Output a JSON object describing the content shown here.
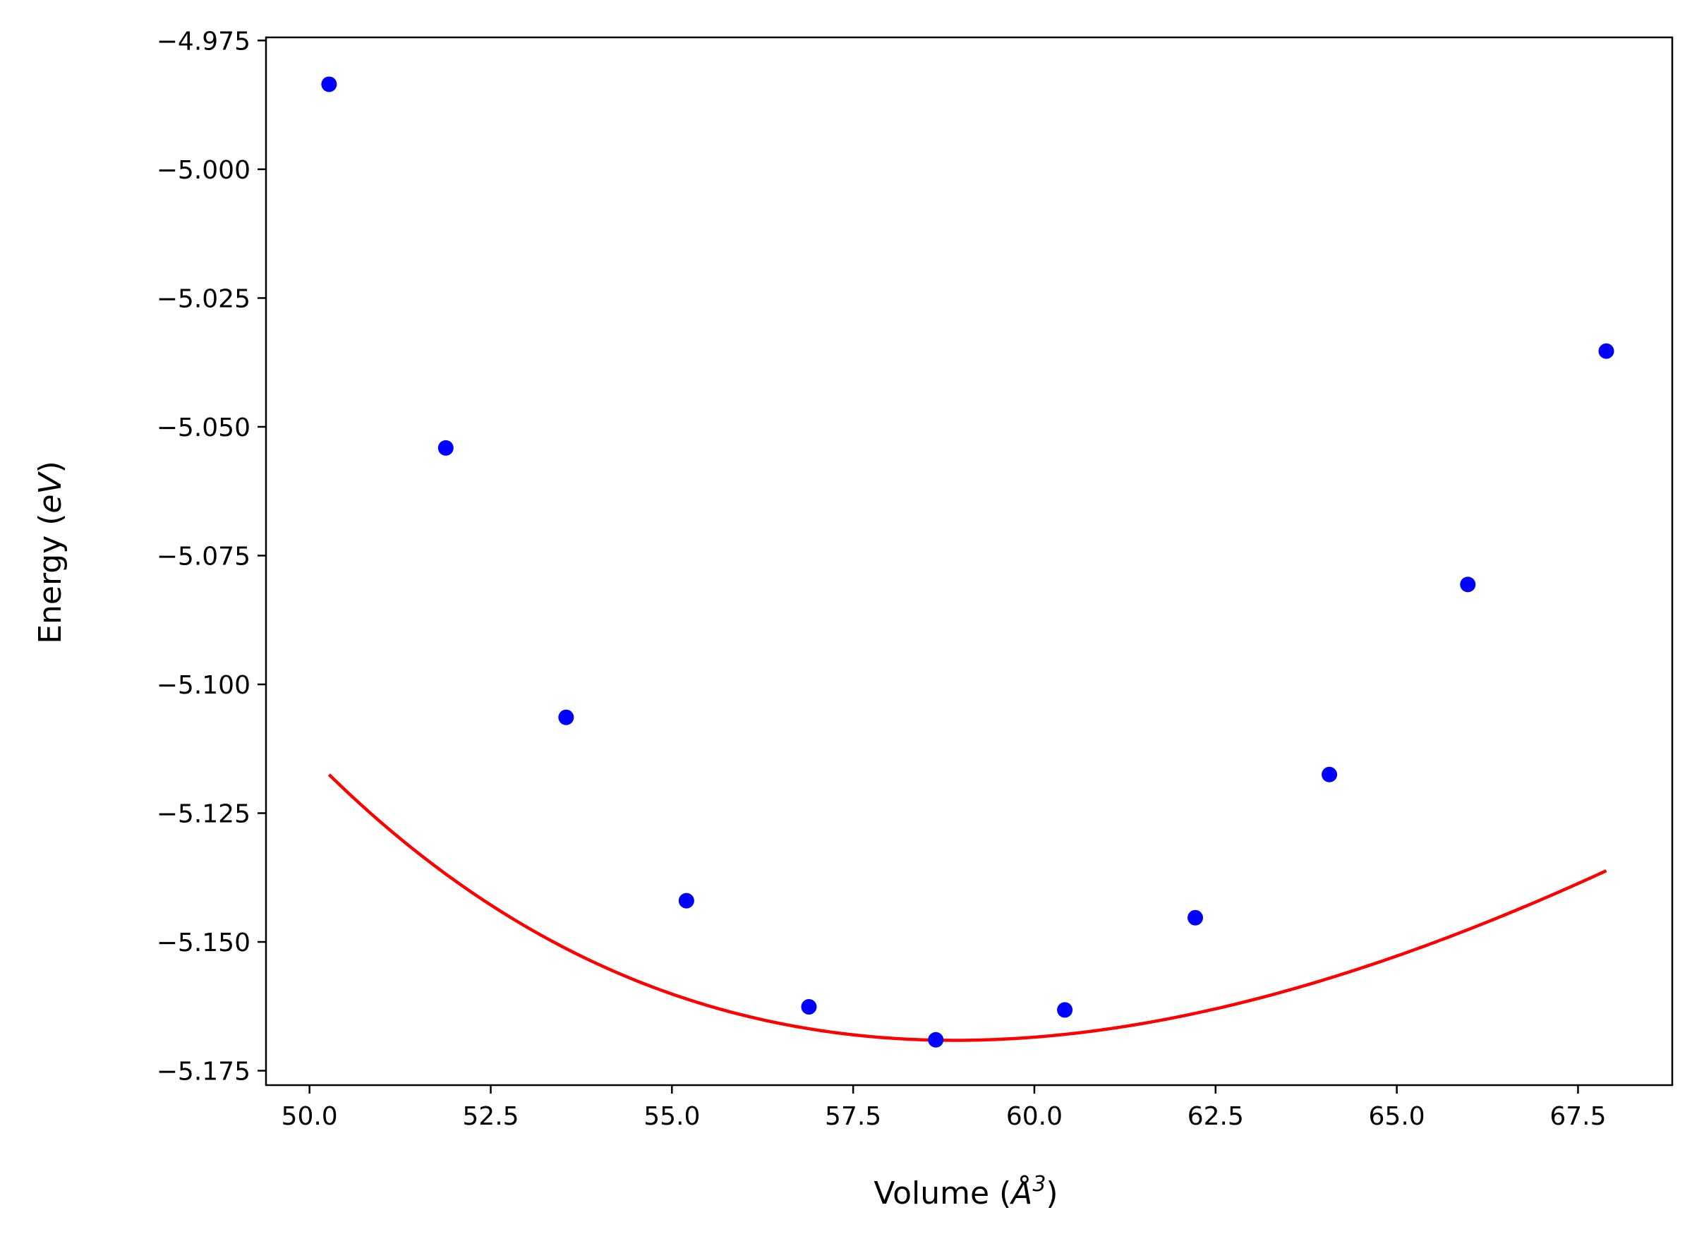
{
  "chart_data": {
    "type": "scatter",
    "title": "",
    "xlabel": {
      "prefix": "Volume (",
      "symbol": "Å",
      "superscript": "3",
      "suffix": ")"
    },
    "ylabel": {
      "prefix": "Energy (",
      "symbol": "eV",
      "suffix": ")"
    },
    "xlim": [
      49.4,
      68.8
    ],
    "ylim": [
      -5.1778,
      -4.9744
    ],
    "xticks": [
      50.0,
      52.5,
      55.0,
      57.5,
      60.0,
      62.5,
      65.0,
      67.5
    ],
    "xtick_labels": [
      "50.0",
      "52.5",
      "55.0",
      "57.5",
      "60.0",
      "62.5",
      "65.0",
      "67.5"
    ],
    "yticks": [
      -4.975,
      -5.0,
      -5.025,
      -5.05,
      -5.075,
      -5.1,
      -5.125,
      -5.15,
      -5.175
    ],
    "ytick_labels": [
      "−4.975",
      "−5.000",
      "−5.025",
      "−5.050",
      "−5.075",
      "−5.100",
      "−5.125",
      "−5.150",
      "−5.175"
    ],
    "grid": false,
    "legend": "none",
    "series": [
      {
        "kind": "points",
        "color": "#0000ff",
        "x": [
          50.27,
          51.88,
          53.54,
          55.2,
          56.89,
          58.64,
          60.42,
          62.22,
          64.07,
          65.98,
          67.89
        ],
        "y": [
          -4.9835,
          -5.0541,
          -5.1064,
          -5.142,
          -5.1626,
          -5.169,
          -5.1632,
          -5.1453,
          -5.1175,
          -5.0806,
          -5.0353
        ]
      },
      {
        "kind": "fit-line",
        "color": "#ff0000",
        "model": "birch-murnaghan",
        "E0": -5.1691,
        "V0": 58.9,
        "B0": 0.0617,
        "B0prime": 4.3,
        "x_range": [
          50.27,
          67.89
        ]
      }
    ]
  }
}
